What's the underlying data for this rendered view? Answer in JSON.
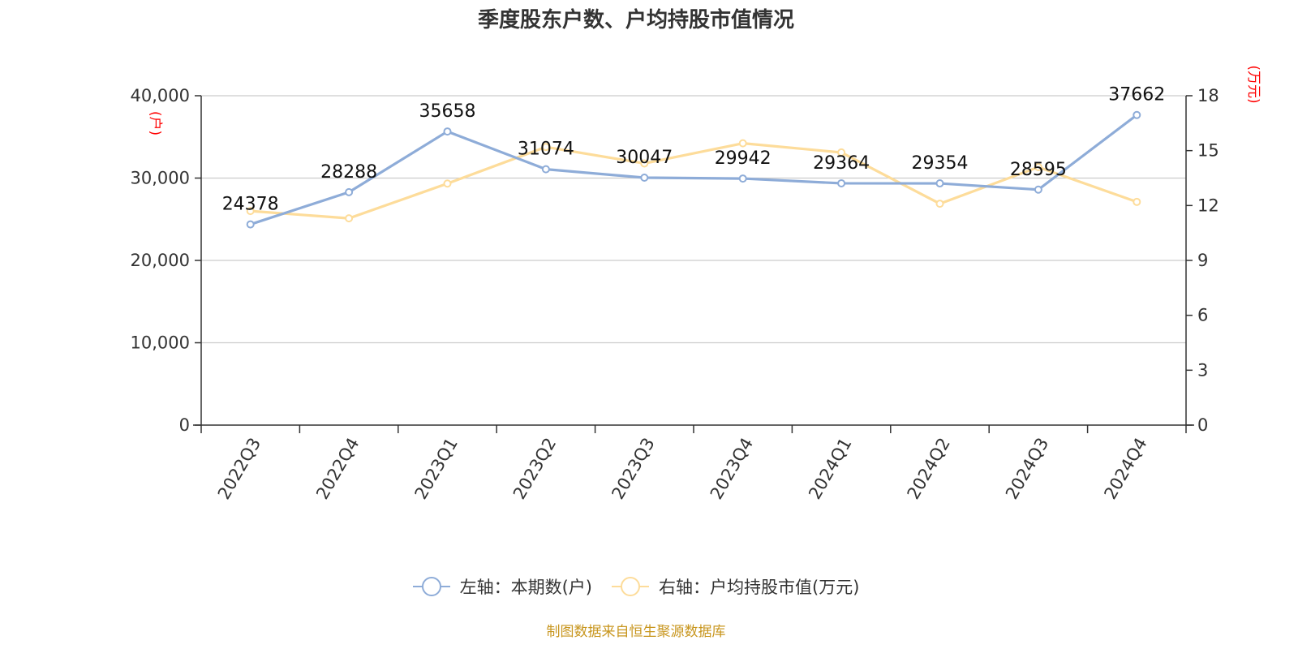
{
  "chart_data": {
    "type": "line",
    "title": "季度股东户数、户均持股市值情况",
    "categories": [
      "2022Q3",
      "2022Q4",
      "2023Q1",
      "2023Q2",
      "2023Q3",
      "2023Q4",
      "2024Q1",
      "2024Q2",
      "2024Q3",
      "2024Q4"
    ],
    "series": [
      {
        "name": "左轴：本期数(户)",
        "axis": "left",
        "color": "#8eacd8",
        "values": [
          24378,
          28288,
          35658,
          31074,
          30047,
          29942,
          29364,
          29354,
          28595,
          37662
        ],
        "data_labels": [
          "24378",
          "28288",
          "35658",
          "31074",
          "30047",
          "29942",
          "29364",
          "29354",
          "28595",
          "37662"
        ]
      },
      {
        "name": "右轴：户均持股市值(万元)",
        "axis": "right",
        "color": "#fddc9a",
        "values": [
          11.7,
          11.3,
          13.2,
          15.2,
          14.3,
          15.4,
          14.9,
          12.1,
          14.1,
          12.2
        ]
      }
    ],
    "y_left": {
      "unit_label": "(户)",
      "ylim": [
        0,
        40000
      ],
      "ticks": [
        0,
        10000,
        20000,
        30000,
        40000
      ],
      "tick_labels": [
        "0",
        "10,000",
        "20,000",
        "30,000",
        "40,000"
      ]
    },
    "y_right": {
      "unit_label": "(万元)",
      "ylim": [
        0,
        18
      ],
      "ticks": [
        0,
        3,
        6,
        9,
        12,
        15,
        18
      ],
      "tick_labels": [
        "0",
        "3",
        "6",
        "9",
        "12",
        "15",
        "18"
      ]
    },
    "grid": true,
    "legend_position": "bottom-center",
    "source": "制图数据来自恒生聚源数据库"
  }
}
